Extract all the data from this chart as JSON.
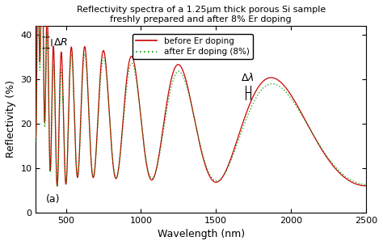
{
  "title_line1": "Reflectivity spectra of a 1.25μm thick porous Si sample",
  "title_line2": "freshly prepared and after 8% Er doping",
  "xlabel": "Wavelength (nm)",
  "ylabel": "Reflectivity (%)",
  "xlim": [
    300,
    2500
  ],
  "ylim": [
    0,
    42
  ],
  "yticks": [
    0,
    10,
    20,
    30,
    40
  ],
  "xticks": [
    500,
    1000,
    1500,
    2000,
    2500
  ],
  "legend_entries": [
    "before Er doping",
    "after Er doping (8%)"
  ],
  "color_before": "#cc0000",
  "color_after": "#009900",
  "label_a": "(a)",
  "background_color": "#ffffff",
  "delta_R_y1": 39.5,
  "delta_R_y2": 37.0,
  "delta_lambda_lam1": 1695,
  "delta_lambda_lam2": 1730,
  "delta_lambda_y": 27.0
}
